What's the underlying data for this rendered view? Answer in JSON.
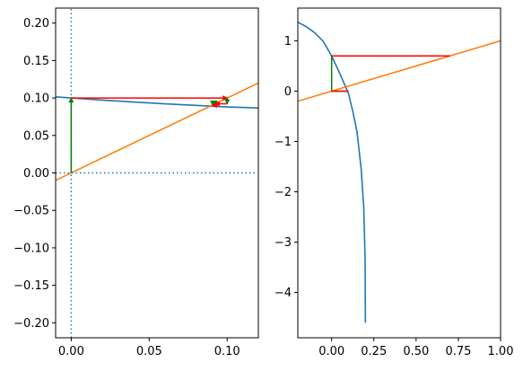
{
  "colors": {
    "curve": "#1f77b4",
    "identity": "#ff7f0e",
    "horizontal_step": "#ff0000",
    "vertical_step": "#008000",
    "axis_ref": "#1f77b4"
  },
  "chart_data": [
    {
      "type": "line",
      "title": "",
      "xlabel": "",
      "ylabel": "",
      "xlim": [
        -0.01,
        0.12
      ],
      "ylim": [
        -0.22,
        0.22
      ],
      "grid": false,
      "x_ticks": [
        0.0,
        0.05,
        0.1
      ],
      "x_tick_labels": [
        "0.00",
        "0.05",
        "0.10"
      ],
      "y_ticks": [
        -0.2,
        -0.15,
        -0.1,
        -0.05,
        0.0,
        0.05,
        0.1,
        0.15,
        0.2
      ],
      "y_tick_labels": [
        "−0.20",
        "−0.15",
        "−0.10",
        "−0.05",
        "0.00",
        "0.05",
        "0.10",
        "0.15",
        "0.20"
      ],
      "series": [
        {
          "role": "curve",
          "style": "solid",
          "color": "#1f77b4",
          "x": [
            -0.01,
            0.0,
            0.02,
            0.04,
            0.06,
            0.08,
            0.1,
            0.12
          ],
          "y": [
            0.1015,
            0.1,
            0.0972,
            0.0946,
            0.0922,
            0.0901,
            0.0881,
            0.0867
          ]
        },
        {
          "role": "identity",
          "style": "solid",
          "color": "#ff7f0e",
          "x": [
            -0.01,
            0.12
          ],
          "y": [
            -0.01,
            0.12
          ]
        },
        {
          "role": "reference-hline",
          "style": "dotted",
          "color": "#1f77b4",
          "x": [
            -0.01,
            0.118
          ],
          "y": [
            0.0,
            0.0
          ]
        },
        {
          "role": "reference-vline",
          "style": "dotted",
          "color": "#1f77b4",
          "x": [
            0.0,
            0.0
          ],
          "y": [
            -0.22,
            0.22
          ]
        }
      ],
      "arrows": [
        {
          "color": "#008000",
          "from": [
            0.0,
            0.0
          ],
          "to": [
            0.0,
            0.1
          ]
        },
        {
          "color": "#ff0000",
          "from": [
            0.0,
            0.1
          ],
          "to": [
            0.1,
            0.1
          ]
        },
        {
          "color": "#008000",
          "from": [
            0.1,
            0.1
          ],
          "to": [
            0.1,
            0.0923
          ]
        },
        {
          "color": "#ff0000",
          "from": [
            0.1,
            0.0923
          ],
          "to": [
            0.0923,
            0.0923
          ]
        },
        {
          "color": "#008000",
          "from": [
            0.0923,
            0.0923
          ],
          "to": [
            0.0923,
            0.0907
          ]
        },
        {
          "color": "#ff0000",
          "from": [
            0.0923,
            0.0907
          ],
          "to": [
            0.0907,
            0.0907
          ]
        },
        {
          "color": "#008000",
          "from": [
            0.0907,
            0.0907
          ],
          "to": [
            0.0907,
            0.0904
          ]
        },
        {
          "color": "#ff0000",
          "from": [
            0.0907,
            0.0904
          ],
          "to": [
            0.0904,
            0.0904
          ]
        }
      ]
    },
    {
      "type": "line",
      "title": "",
      "xlabel": "",
      "ylabel": "",
      "xlim": [
        -0.2,
        1.0
      ],
      "ylim": [
        -4.9,
        1.65
      ],
      "grid": false,
      "x_ticks": [
        0.0,
        0.25,
        0.5,
        0.75,
        1.0
      ],
      "x_tick_labels": [
        "0.00",
        "0.25",
        "0.50",
        "0.75",
        "1.00"
      ],
      "y_ticks": [
        -4,
        -3,
        -2,
        -1,
        0,
        1
      ],
      "y_tick_labels": [
        "−4",
        "−3",
        "−2",
        "−1",
        "0",
        "1"
      ],
      "series": [
        {
          "role": "curve",
          "style": "solid",
          "color": "#1f77b4",
          "x": [
            -0.2,
            -0.15,
            -0.1,
            -0.05,
            0.0,
            0.05,
            0.1,
            0.125,
            0.15,
            0.175,
            0.19,
            0.198,
            0.2
          ],
          "y": [
            1.37,
            1.28,
            1.16,
            0.99,
            0.7,
            0.34,
            -0.05,
            -0.4,
            -0.8,
            -1.55,
            -2.3,
            -3.3,
            -4.6
          ]
        },
        {
          "role": "identity",
          "style": "solid",
          "color": "#ff7f0e",
          "x": [
            -0.2,
            1.0
          ],
          "y": [
            -0.2,
            1.0
          ]
        }
      ],
      "segments": [
        {
          "color": "#008000",
          "from": [
            0.0,
            0.0
          ],
          "to": [
            0.0,
            0.7
          ]
        },
        {
          "color": "#ff0000",
          "from": [
            0.0,
            0.7
          ],
          "to": [
            0.7,
            0.7
          ]
        },
        {
          "color": "#008000",
          "from": [
            0.0,
            0.0
          ],
          "to": [
            0.1,
            0.0
          ]
        },
        {
          "color": "#ff0000",
          "from": [
            0.0,
            0.0
          ],
          "to": [
            0.1,
            0.0
          ]
        }
      ]
    }
  ]
}
